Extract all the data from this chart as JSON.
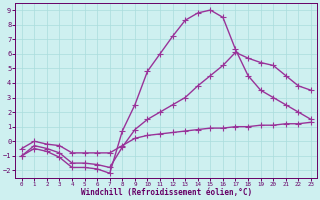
{
  "xlabel": "Windchill (Refroidissement éolien,°C)",
  "bg_color": "#cef0f0",
  "grid_color": "#aadddd",
  "line_color": "#993399",
  "xlim": [
    -0.5,
    23.5
  ],
  "ylim": [
    -2.5,
    9.5
  ],
  "xticks": [
    0,
    1,
    2,
    3,
    4,
    5,
    6,
    7,
    8,
    9,
    10,
    11,
    12,
    13,
    14,
    15,
    16,
    17,
    18,
    19,
    20,
    21,
    22,
    23
  ],
  "yticks": [
    -2,
    -1,
    0,
    1,
    2,
    3,
    4,
    5,
    6,
    7,
    8,
    9
  ],
  "curve_peaked_x": [
    0,
    1,
    2,
    3,
    4,
    5,
    6,
    7,
    8,
    9,
    10,
    11,
    12,
    13,
    14,
    15,
    16,
    17,
    18,
    19,
    20,
    21,
    22,
    23
  ],
  "curve_peaked_y": [
    -1.0,
    -0.5,
    -0.7,
    -1.1,
    -1.8,
    -1.8,
    -1.9,
    -2.2,
    0.7,
    2.5,
    4.8,
    6.0,
    7.2,
    8.3,
    8.8,
    9.0,
    8.5,
    6.3,
    4.5,
    3.5,
    3.0,
    2.5,
    2.0,
    1.5
  ],
  "curve_diag_x": [
    0,
    1,
    2,
    3,
    4,
    5,
    6,
    7,
    8,
    9,
    10,
    11,
    12,
    13,
    14,
    15,
    16,
    17,
    18,
    19,
    20,
    21,
    22,
    23
  ],
  "curve_diag_y": [
    -1.0,
    -0.3,
    -0.5,
    -0.8,
    -1.5,
    -1.5,
    -1.6,
    -1.8,
    -0.4,
    0.8,
    1.5,
    2.0,
    2.5,
    3.0,
    3.8,
    4.5,
    5.2,
    6.1,
    5.7,
    5.4,
    5.2,
    4.5,
    3.8,
    3.5
  ],
  "curve_flat_x": [
    0,
    1,
    2,
    3,
    4,
    5,
    6,
    7,
    8,
    9,
    10,
    11,
    12,
    13,
    14,
    15,
    16,
    17,
    18,
    19,
    20,
    21,
    22,
    23
  ],
  "curve_flat_y": [
    -0.5,
    0.0,
    -0.2,
    -0.3,
    -0.8,
    -0.8,
    -0.8,
    -0.8,
    -0.3,
    0.2,
    0.4,
    0.5,
    0.6,
    0.7,
    0.8,
    0.9,
    0.9,
    1.0,
    1.0,
    1.1,
    1.1,
    1.2,
    1.2,
    1.3
  ],
  "marker": "+",
  "markersize": 4,
  "linewidth": 1.0
}
